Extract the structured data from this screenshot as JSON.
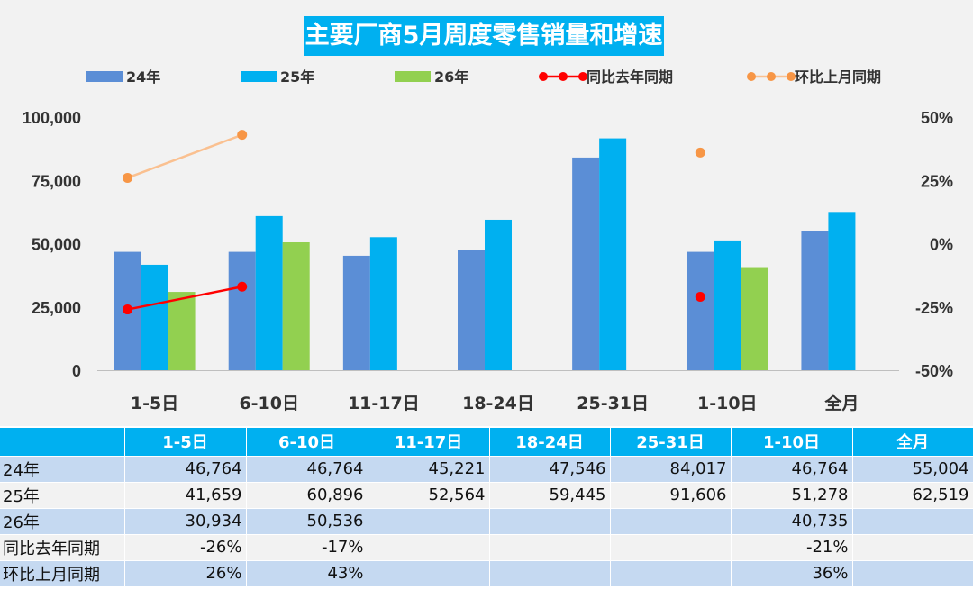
{
  "chart_data": {
    "type": "bar",
    "title": "主要厂商5月周度零售销量和增速",
    "categories": [
      "1-5日",
      "6-10日",
      "11-17日",
      "18-24日",
      "25-31日",
      "1-10日",
      "全月"
    ],
    "series": [
      {
        "name": "24年",
        "kind": "bar",
        "color": "#5b8ed6",
        "values": [
          46764,
          46764,
          45221,
          47546,
          84017,
          46764,
          55004
        ]
      },
      {
        "name": "25年",
        "kind": "bar",
        "color": "#00b0f0",
        "values": [
          41659,
          60896,
          52564,
          59445,
          91606,
          51278,
          62519
        ]
      },
      {
        "name": "26年",
        "kind": "bar",
        "color": "#92d050",
        "values": [
          30934,
          50536,
          null,
          null,
          null,
          40735,
          null
        ]
      },
      {
        "name": "同比去年同期",
        "kind": "line",
        "axis": "right",
        "color": "#ff0000",
        "values": [
          -26,
          -17,
          null,
          null,
          null,
          -21,
          null
        ]
      },
      {
        "name": "环比上月同期",
        "kind": "line",
        "axis": "right",
        "color": "#f79646",
        "line_color": "#fac090",
        "values": [
          26,
          43,
          null,
          null,
          null,
          36,
          null
        ]
      }
    ],
    "y_left": {
      "min": 0,
      "max": 100000,
      "ticks": [
        "0",
        "25,000",
        "50,000",
        "75,000",
        "100,000"
      ]
    },
    "y_right": {
      "min": -50,
      "max": 50,
      "ticks": [
        "-50%",
        "-25%",
        "0%",
        "25%",
        "50%"
      ]
    },
    "line_segments": [
      [
        0,
        1
      ]
    ],
    "legend_position": "top",
    "grid": false
  },
  "table": {
    "headers": [
      "",
      "1-5日",
      "6-10日",
      "11-17日",
      "18-24日",
      "25-31日",
      "1-10日",
      "全月"
    ],
    "rows": [
      {
        "label": "24年",
        "cells": [
          "46,764",
          "46,764",
          "45,221",
          "47,546",
          "84,017",
          "46,764",
          "55,004"
        ]
      },
      {
        "label": "25年",
        "cells": [
          "41,659",
          "60,896",
          "52,564",
          "59,445",
          "91,606",
          "51,278",
          "62,519"
        ]
      },
      {
        "label": "26年",
        "cells": [
          "30,934",
          "50,536",
          "",
          "",
          "",
          "40,735",
          ""
        ]
      },
      {
        "label": "同比去年同期",
        "cells": [
          "-26%",
          "-17%",
          "",
          "",
          "",
          "-21%",
          ""
        ]
      },
      {
        "label": "环比上月同期",
        "cells": [
          "26%",
          "43%",
          "",
          "",
          "",
          "36%",
          ""
        ]
      }
    ]
  }
}
